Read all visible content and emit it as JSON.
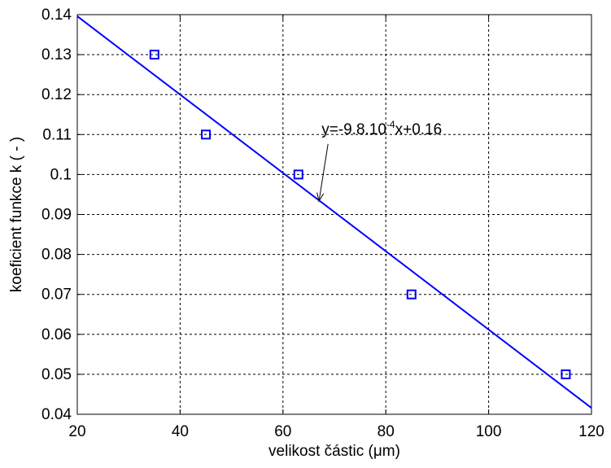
{
  "chart_data": {
    "type": "scatter",
    "title": "",
    "xlabel": "velikost částic (μm)",
    "ylabel": "koeficient funkce k ( - )",
    "xlim": [
      20,
      120
    ],
    "ylim": [
      0.04,
      0.14
    ],
    "x_ticks": [
      20,
      40,
      60,
      80,
      100,
      120
    ],
    "x_tick_labels": [
      "20",
      "40",
      "60",
      "80",
      "100",
      "120"
    ],
    "y_ticks": [
      0.04,
      0.05,
      0.06,
      0.07,
      0.08,
      0.09,
      0.1,
      0.11,
      0.12,
      0.13,
      0.14
    ],
    "y_tick_labels": [
      "0.04",
      "0.05",
      "0.06",
      "0.07",
      "0.08",
      "0.09",
      "0.1",
      "0.11",
      "0.12",
      "0.13",
      "0.14"
    ],
    "grid": true,
    "legend": "none",
    "series": [
      {
        "type": "scatter",
        "marker": "square",
        "color": "#0000ff",
        "x": [
          35,
          45,
          63,
          85,
          115
        ],
        "y": [
          0.13,
          0.11,
          0.1,
          0.07,
          0.05
        ]
      },
      {
        "type": "line",
        "color": "#0000ff",
        "x": [
          20,
          120
        ],
        "y": [
          0.1396,
          0.0416
        ]
      }
    ],
    "annotation": {
      "text_base": "y=-9.8.10",
      "text_exponent": "-4",
      "text_tail": "x+0.16",
      "text_at": [
        67.5,
        0.1101
      ],
      "arrow_to": [
        67,
        0.0933
      ]
    }
  }
}
